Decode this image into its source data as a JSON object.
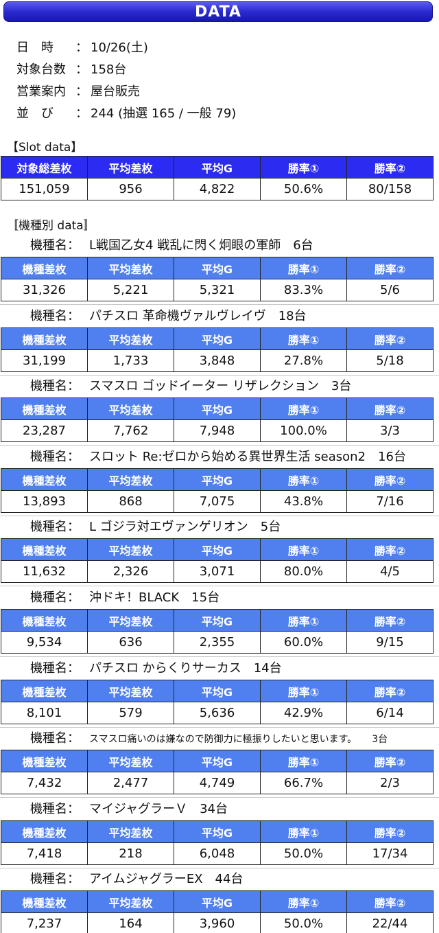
{
  "banner": "DATA",
  "info": [
    {
      "label": "日　時",
      "value": "10/26(土)"
    },
    {
      "label": "対象台数",
      "value": "158台"
    },
    {
      "label": "営業案内",
      "value": "屋台販売"
    },
    {
      "label": "並　び",
      "value": "244 (抽選 165 / 一般 79)"
    }
  ],
  "colon": "：",
  "slot_title": "【Slot data】",
  "slot_headers": [
    "対象総差枚",
    "平均差枚",
    "平均G",
    "勝率①",
    "勝率②"
  ],
  "slot_values": [
    "151,059",
    "956",
    "4,822",
    "50.6%",
    "80/158"
  ],
  "model_section_title": "〚機種別 data〛",
  "model_label": "機種名：",
  "model_headers": [
    "機種差枚",
    "平均差枚",
    "平均G",
    "勝率①",
    "勝率②"
  ],
  "models": [
    {
      "name": "L戦国乙女4 戦乱に閃く炯眼の軍師",
      "count": "6台",
      "values": [
        "31,326",
        "5,221",
        "5,321",
        "83.3%",
        "5/6"
      ]
    },
    {
      "name": "パチスロ 革命機ヴァルヴレイヴ",
      "count": "18台",
      "values": [
        "31,199",
        "1,733",
        "3,848",
        "27.8%",
        "5/18"
      ]
    },
    {
      "name": "スマスロ ゴッドイーター リザレクション",
      "count": "3台",
      "values": [
        "23,287",
        "7,762",
        "7,948",
        "100.0%",
        "3/3"
      ]
    },
    {
      "name": "スロット Re:ゼロから始める異世界生活 season2",
      "count": "16台",
      "values": [
        "13,893",
        "868",
        "7,075",
        "43.8%",
        "7/16"
      ]
    },
    {
      "name": "L ゴジラ対エヴァンゲリオン",
      "count": "5台",
      "values": [
        "11,632",
        "2,326",
        "3,071",
        "80.0%",
        "4/5"
      ]
    },
    {
      "name": "沖ドキ！BLACK",
      "count": "15台",
      "values": [
        "9,534",
        "636",
        "2,355",
        "60.0%",
        "9/15"
      ]
    },
    {
      "name": "パチスロ からくりサーカス",
      "count": "14台",
      "values": [
        "8,101",
        "579",
        "5,636",
        "42.9%",
        "6/14"
      ]
    },
    {
      "name": "スマスロ痛いのは嫌なので防御力に極振りしたいと思います。",
      "count": "3台",
      "values": [
        "7,432",
        "2,477",
        "4,749",
        "66.7%",
        "2/3"
      ]
    },
    {
      "name": "マイジャグラーＶ",
      "count": "34台",
      "values": [
        "7,418",
        "218",
        "6,048",
        "50.0%",
        "17/34"
      ]
    },
    {
      "name": "アイムジャグラーEX",
      "count": "44台",
      "values": [
        "7,237",
        "164",
        "3,960",
        "50.0%",
        "22/44"
      ]
    }
  ]
}
